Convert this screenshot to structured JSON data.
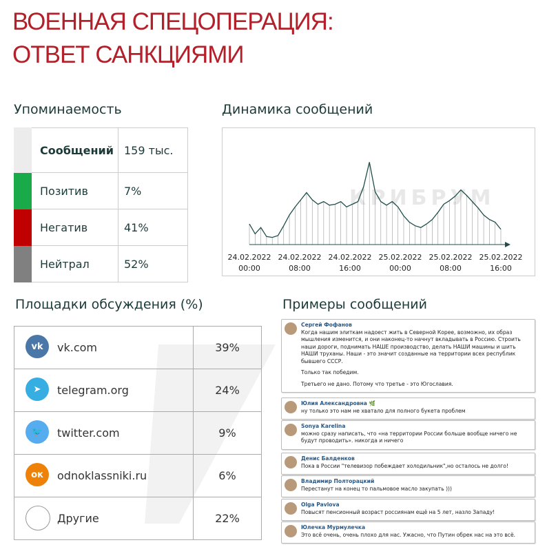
{
  "header": {
    "title_line1": "ВОЕННАЯ СПЕЦОПЕРАЦИЯ:",
    "title_line2": "ОТВЕТ САНКЦИЯМИ"
  },
  "mentions": {
    "title": "Упоминаемость",
    "rows": [
      {
        "label": "Сообщений",
        "value": "159 тыс.",
        "color": "#ececec"
      },
      {
        "label": "Позитив",
        "value": "7%",
        "color": "#1aaa4a"
      },
      {
        "label": "Негатив",
        "value": "41%",
        "color": "#c00000"
      },
      {
        "label": "Нейтрал",
        "value": "52%",
        "color": "#808080"
      }
    ]
  },
  "chart_data": {
    "type": "line",
    "title": "Динамика сообщений",
    "watermark": "КРИБРУМ",
    "color": "#1f4e4a",
    "ylim": [
      0,
      100
    ],
    "values": [
      23,
      12,
      19,
      9,
      8,
      10,
      21,
      33,
      42,
      50,
      58,
      50,
      45,
      48,
      44,
      45,
      48,
      42,
      45,
      48,
      65,
      92,
      59,
      48,
      44,
      48,
      42,
      32,
      25,
      21,
      19,
      23,
      28,
      36,
      45,
      49,
      54,
      61,
      55,
      48,
      41,
      33,
      28,
      25,
      17
    ],
    "xticks": [
      {
        "date": "24.02.2022",
        "time": "00:00"
      },
      {
        "date": "24.02.2022",
        "time": "08:00"
      },
      {
        "date": "24.02.2022",
        "time": "16:00"
      },
      {
        "date": "25.02.2022",
        "time": "00:00"
      },
      {
        "date": "25.02.2022",
        "time": "08:00"
      },
      {
        "date": "25.02.2022",
        "time": "16:00"
      }
    ]
  },
  "platforms": {
    "title": "Площадки обсуждения (%)",
    "rows": [
      {
        "name": "vk.com",
        "value": "39%",
        "icon": "vk"
      },
      {
        "name": "telegram.org",
        "value": "24%",
        "icon": "tg"
      },
      {
        "name": "twitter.com",
        "value": "9%",
        "icon": "tw"
      },
      {
        "name": "odnoklassniki.ru",
        "value": "6%",
        "icon": "ok"
      },
      {
        "name": "Другие",
        "value": "22%",
        "icon": "other"
      }
    ]
  },
  "examples": {
    "title": "Примеры сообщений",
    "messages": [
      {
        "author": "Сергей Фофанов",
        "paragraphs": [
          "Когда нашим элиткам надоест жить в Северной Корее, возможно, их образ мышления изменится, и они наконец-то начнут вкладывать в Россию. Строить наши дороги, поднимать НАШЕ производство, делать НАШИ машины и шить НАШИ труханы. Наши - это значит созданные на территории всех республик бывшего СССР.",
          "Только так победим.",
          "Третьего не дано. Потому что третье - это Югославия."
        ]
      },
      {
        "author": "Юлия Александровна 🌿",
        "paragraphs": [
          "ну только это нам не хватало для полного букета проблем"
        ]
      },
      {
        "author": "Sonya Karelina",
        "paragraphs": [
          "можно сразу написать, что «на территории России больше вообще ничего не будут проводить». никогда и ничего"
        ]
      },
      {
        "author": "Денис Балденков",
        "paragraphs": [
          "Пока в России \"телевизор побеждает холодильник\",но осталось не долго!"
        ]
      },
      {
        "author": "Владимир Полторацкий",
        "paragraphs": [
          "Перестанут на конец то пальмовое масло закупать )))"
        ]
      },
      {
        "author": "Olga Pavlova",
        "paragraphs": [
          "Повысят пенсионный возраст россиянам ещё на 5 лет, назло Западу!"
        ]
      },
      {
        "author": "Юлечка Мурмулечка",
        "paragraphs": [
          "Это всё очень, очень плохо для нас. Ужасно, что Путин обрек нас на это всё."
        ]
      }
    ]
  }
}
